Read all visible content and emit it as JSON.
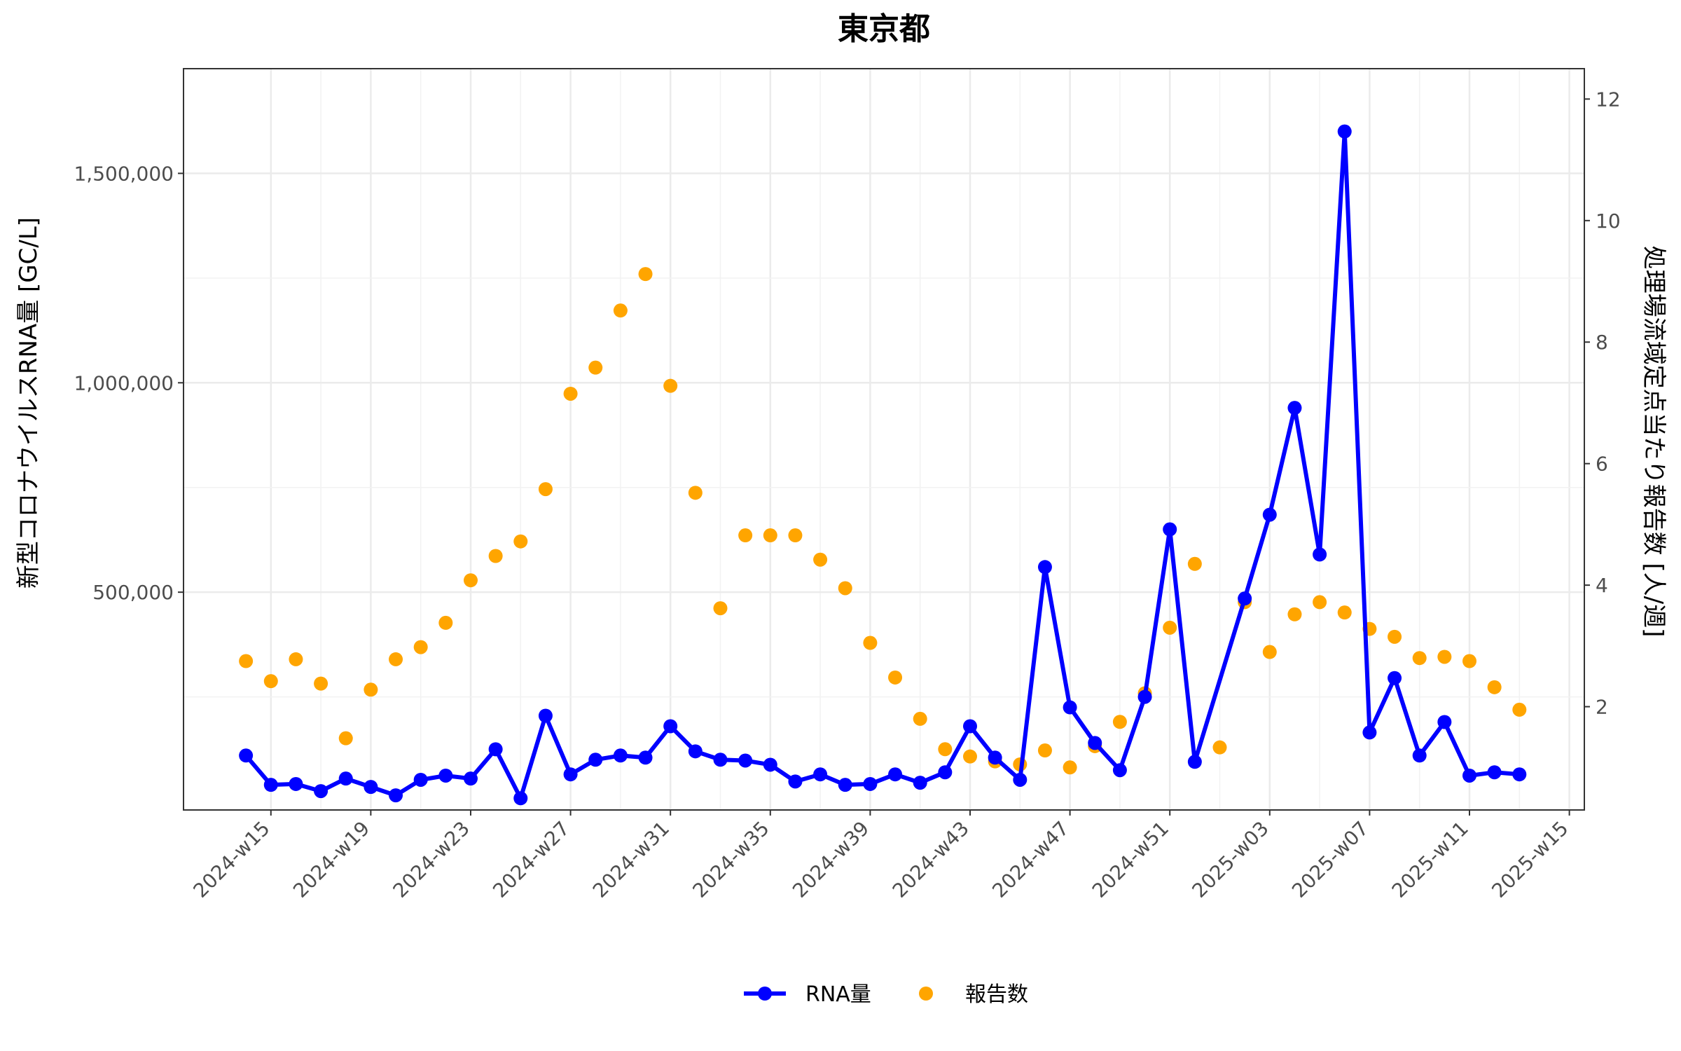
{
  "chart_data": {
    "type": "line",
    "title": "東京都",
    "ylabel": "新型コロナウイルスRNA量 [GC/L]",
    "y2label": "処理場流域定点当たり報告数 [人/週]",
    "xlabel": "",
    "ylim": [
      -20000,
      1750000
    ],
    "y2lim": [
      0.3,
      12.5
    ],
    "yticks": [
      500000,
      1000000,
      1500000
    ],
    "ytick_labels": [
      "500,000",
      "1,000,000",
      "1,500,000"
    ],
    "y2ticks": [
      2,
      4,
      6,
      8,
      10,
      12
    ],
    "y2tick_labels": [
      "2",
      "4",
      "6",
      "8",
      "10",
      "12"
    ],
    "x_weeks_start": "2024-w15",
    "xticks": [
      0,
      4,
      8,
      12,
      16,
      20,
      24,
      28,
      32,
      36,
      40,
      44,
      48,
      52
    ],
    "xtick_labels": [
      "2024-w15",
      "2024-w19",
      "2024-w23",
      "2024-w27",
      "2024-w31",
      "2024-w35",
      "2024-w39",
      "2024-w43",
      "2024-w47",
      "2024-w51",
      "2025-w03",
      "2025-w07",
      "2025-w11",
      "2025-w15"
    ],
    "xlim": [
      -3.5,
      52.6
    ],
    "grid": true,
    "legend_position": "bottom",
    "series": [
      {
        "name": "RNA量",
        "kind": "line+points",
        "axis": "left",
        "color": "#0000ff",
        "points": [
          [
            -1,
            110000
          ],
          [
            0,
            40000
          ],
          [
            1,
            42000
          ],
          [
            2,
            25000
          ],
          [
            3,
            55000
          ],
          [
            4,
            35000
          ],
          [
            5,
            15000
          ],
          [
            6,
            52000
          ],
          [
            7,
            62000
          ],
          [
            8,
            55000
          ],
          [
            9,
            125000
          ],
          [
            10,
            8000
          ],
          [
            11,
            205000
          ],
          [
            12,
            65000
          ],
          [
            13,
            100000
          ],
          [
            14,
            110000
          ],
          [
            15,
            105000
          ],
          [
            16,
            180000
          ],
          [
            17,
            120000
          ],
          [
            18,
            100000
          ],
          [
            19,
            98000
          ],
          [
            20,
            88000
          ],
          [
            21,
            48000
          ],
          [
            22,
            65000
          ],
          [
            23,
            40000
          ],
          [
            24,
            42000
          ],
          [
            25,
            65000
          ],
          [
            26,
            45000
          ],
          [
            27,
            70000
          ],
          [
            28,
            180000
          ],
          [
            29,
            105000
          ],
          [
            30,
            52000
          ],
          [
            31,
            560000
          ],
          [
            32,
            225000
          ],
          [
            33,
            140000
          ],
          [
            34,
            75000
          ],
          [
            35,
            250000
          ],
          [
            36,
            650000
          ],
          [
            37,
            95000
          ],
          [
            39,
            485000
          ],
          [
            40,
            685000
          ],
          [
            41,
            940000
          ],
          [
            42,
            590000
          ],
          [
            43,
            1600000
          ],
          [
            44,
            165000
          ],
          [
            45,
            295000
          ],
          [
            46,
            110000
          ],
          [
            47,
            190000
          ],
          [
            48,
            62000
          ],
          [
            49,
            70000
          ],
          [
            50,
            65000
          ]
        ]
      },
      {
        "name": "報告数",
        "kind": "points",
        "axis": "right",
        "color": "#ffa500",
        "points": [
          [
            -1,
            2.75
          ],
          [
            0,
            2.42
          ],
          [
            1,
            2.78
          ],
          [
            2,
            2.38
          ],
          [
            3,
            1.48
          ],
          [
            4,
            2.28
          ],
          [
            5,
            2.78
          ],
          [
            6,
            2.98
          ],
          [
            7,
            3.38
          ],
          [
            8,
            4.08
          ],
          [
            9,
            4.48
          ],
          [
            10,
            4.72
          ],
          [
            11,
            5.58
          ],
          [
            12,
            7.15
          ],
          [
            13,
            7.58
          ],
          [
            14,
            8.52
          ],
          [
            15,
            9.12
          ],
          [
            16,
            7.28
          ],
          [
            17,
            5.52
          ],
          [
            18,
            3.62
          ],
          [
            19,
            4.82
          ],
          [
            20,
            4.82
          ],
          [
            21,
            4.82
          ],
          [
            22,
            4.42
          ],
          [
            23,
            3.95
          ],
          [
            24,
            3.05
          ],
          [
            25,
            2.48
          ],
          [
            26,
            1.8
          ],
          [
            27,
            1.3
          ],
          [
            28,
            1.18
          ],
          [
            29,
            1.1
          ],
          [
            30,
            1.05
          ],
          [
            31,
            1.28
          ],
          [
            32,
            1.0
          ],
          [
            33,
            1.35
          ],
          [
            34,
            1.75
          ],
          [
            35,
            2.22
          ],
          [
            36,
            3.3
          ],
          [
            37,
            4.35
          ],
          [
            38,
            1.33
          ],
          [
            39,
            3.72
          ],
          [
            40,
            2.9
          ],
          [
            41,
            3.52
          ],
          [
            42,
            3.72
          ],
          [
            43,
            3.55
          ],
          [
            44,
            3.28
          ],
          [
            45,
            3.15
          ],
          [
            46,
            2.8
          ],
          [
            47,
            2.82
          ],
          [
            48,
            2.75
          ],
          [
            49,
            2.32
          ],
          [
            50,
            1.95
          ]
        ]
      }
    ]
  }
}
